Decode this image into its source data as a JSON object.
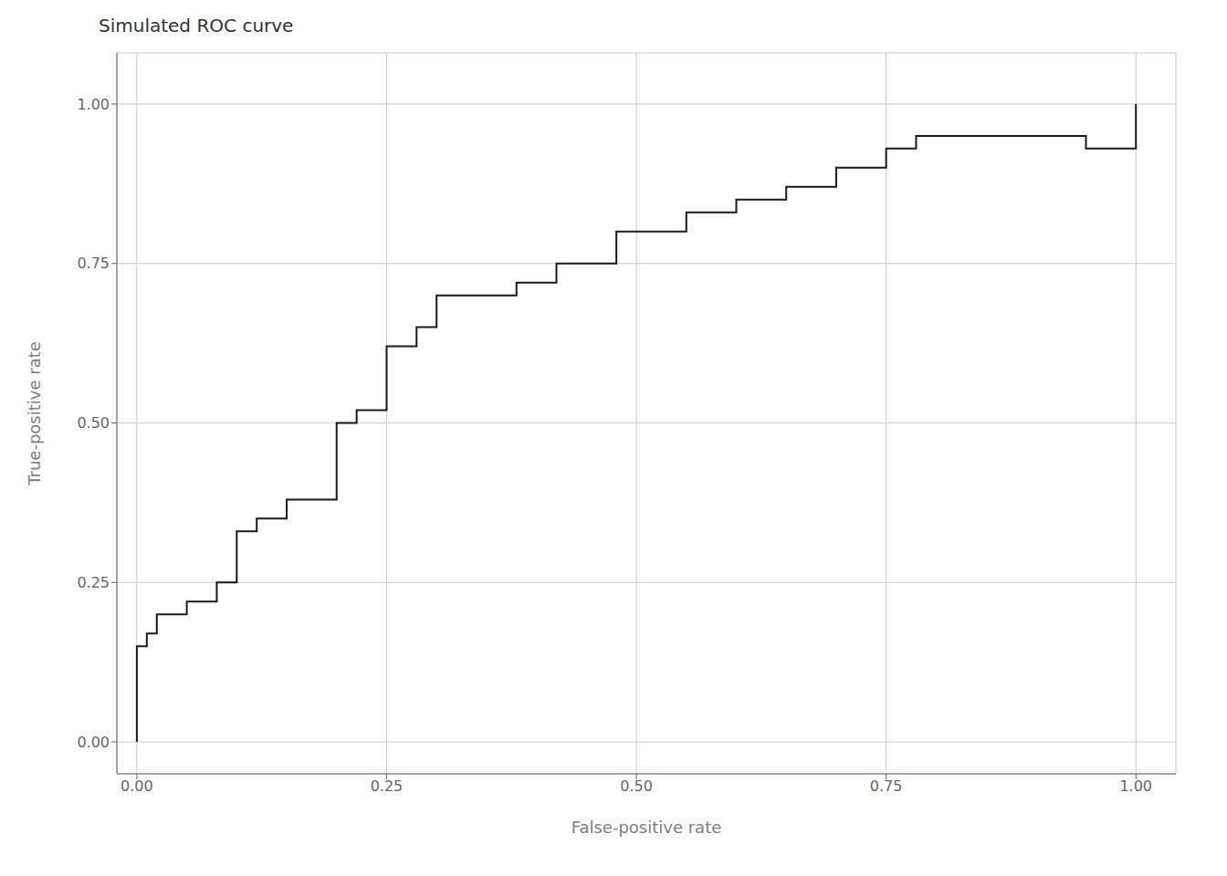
{
  "chart_data": {
    "type": "line",
    "title": "Simulated ROC curve",
    "xlabel": "False-positive rate",
    "ylabel": "True-positive rate",
    "xlim": [
      -0.02,
      1.04
    ],
    "ylim": [
      -0.05,
      1.08
    ],
    "xticks": [
      {
        "value": 0,
        "label": "0.00"
      },
      0.25,
      {
        "value": 0.5,
        "label": "0.50"
      },
      0.75,
      {
        "value": 1,
        "label": "1.00"
      }
    ],
    "yticks": [
      {
        "value": 0,
        "label": "0.00"
      },
      0.25,
      {
        "value": 0.5,
        "label": "0.50"
      },
      0.75,
      {
        "value": 1,
        "label": "1.00"
      }
    ],
    "grid": true,
    "color": "#1a1a1a",
    "x": [
      0.0,
      0.0,
      0.01,
      0.01,
      0.02,
      0.02,
      0.05,
      0.05,
      0.08,
      0.08,
      0.1,
      0.1,
      0.12,
      0.12,
      0.15,
      0.15,
      0.2,
      0.2,
      0.22,
      0.22,
      0.25,
      0.25,
      0.28,
      0.28,
      0.3,
      0.3,
      0.38,
      0.38,
      0.42,
      0.42,
      0.48,
      0.48,
      0.55,
      0.55,
      0.6,
      0.6,
      0.65,
      0.65,
      0.7,
      0.7,
      0.75,
      0.75,
      0.78,
      0.78,
      0.95,
      0.95,
      1.0,
      1.0
    ],
    "values": [
      0.0,
      0.15,
      0.15,
      0.17,
      0.17,
      0.2,
      0.2,
      0.22,
      0.22,
      0.25,
      0.25,
      0.33,
      0.33,
      0.35,
      0.35,
      0.38,
      0.38,
      0.5,
      0.5,
      0.52,
      0.52,
      0.62,
      0.62,
      0.65,
      0.65,
      0.7,
      0.7,
      0.72,
      0.72,
      0.75,
      0.75,
      0.8,
      0.8,
      0.83,
      0.83,
      0.85,
      0.85,
      0.87,
      0.87,
      0.9,
      0.9,
      0.93,
      0.93,
      0.95,
      0.95,
      0.93,
      0.93,
      1.0
    ]
  }
}
